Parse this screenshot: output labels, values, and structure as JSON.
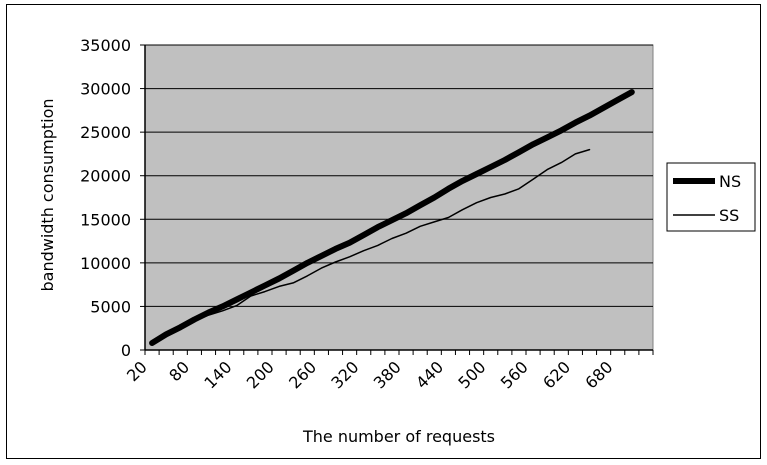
{
  "chart_data": {
    "type": "line",
    "title": "",
    "xlabel": "The number of requests",
    "ylabel": "bandwidth consumption",
    "x_tick_labels": [
      "20",
      "80",
      "140",
      "200",
      "260",
      "320",
      "380",
      "440",
      "500",
      "560",
      "620",
      "680"
    ],
    "y_tick_labels": [
      "0",
      "5000",
      "10000",
      "15000",
      "20000",
      "25000",
      "30000",
      "35000"
    ],
    "x_domain": [
      20,
      740
    ],
    "ylim": [
      0,
      35000
    ],
    "grid": "horizontal",
    "plot_background": "#c0c0c0",
    "legend_position": "right",
    "series": [
      {
        "name": "NS",
        "color": "#000000",
        "thick": true,
        "points": [
          [
            30,
            800
          ],
          [
            50,
            1800
          ],
          [
            70,
            2600
          ],
          [
            90,
            3500
          ],
          [
            110,
            4300
          ],
          [
            130,
            5000
          ],
          [
            150,
            5800
          ],
          [
            170,
            6600
          ],
          [
            190,
            7400
          ],
          [
            210,
            8200
          ],
          [
            230,
            9100
          ],
          [
            250,
            10000
          ],
          [
            270,
            10800
          ],
          [
            290,
            11600
          ],
          [
            310,
            12300
          ],
          [
            330,
            13200
          ],
          [
            350,
            14100
          ],
          [
            370,
            14900
          ],
          [
            390,
            15700
          ],
          [
            410,
            16600
          ],
          [
            430,
            17500
          ],
          [
            450,
            18500
          ],
          [
            470,
            19400
          ],
          [
            490,
            20200
          ],
          [
            510,
            21000
          ],
          [
            530,
            21800
          ],
          [
            550,
            22700
          ],
          [
            570,
            23600
          ],
          [
            590,
            24400
          ],
          [
            610,
            25200
          ],
          [
            630,
            26100
          ],
          [
            650,
            26900
          ],
          [
            670,
            27800
          ],
          [
            690,
            28700
          ],
          [
            710,
            29600
          ]
        ]
      },
      {
        "name": "SS",
        "color": "#000000",
        "thick": false,
        "points": [
          [
            30,
            800
          ],
          [
            50,
            1700
          ],
          [
            70,
            2500
          ],
          [
            90,
            3300
          ],
          [
            110,
            4000
          ],
          [
            130,
            4500
          ],
          [
            150,
            5100
          ],
          [
            170,
            6200
          ],
          [
            190,
            6700
          ],
          [
            210,
            7300
          ],
          [
            230,
            7700
          ],
          [
            250,
            8500
          ],
          [
            270,
            9400
          ],
          [
            290,
            10100
          ],
          [
            310,
            10700
          ],
          [
            330,
            11400
          ],
          [
            350,
            12000
          ],
          [
            370,
            12800
          ],
          [
            390,
            13400
          ],
          [
            410,
            14200
          ],
          [
            430,
            14700
          ],
          [
            450,
            15200
          ],
          [
            470,
            16100
          ],
          [
            490,
            16900
          ],
          [
            510,
            17500
          ],
          [
            530,
            17900
          ],
          [
            550,
            18500
          ],
          [
            570,
            19600
          ],
          [
            590,
            20700
          ],
          [
            610,
            21500
          ],
          [
            630,
            22500
          ],
          [
            650,
            23000
          ]
        ]
      }
    ]
  }
}
